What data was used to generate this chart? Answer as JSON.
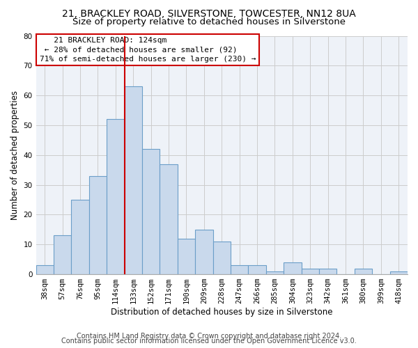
{
  "title1": "21, BRACKLEY ROAD, SILVERSTONE, TOWCESTER, NN12 8UA",
  "title2": "Size of property relative to detached houses in Silverstone",
  "xlabel": "Distribution of detached houses by size in Silverstone",
  "ylabel": "Number of detached properties",
  "categories": [
    "38sqm",
    "57sqm",
    "76sqm",
    "95sqm",
    "114sqm",
    "133sqm",
    "152sqm",
    "171sqm",
    "190sqm",
    "209sqm",
    "228sqm",
    "247sqm",
    "266sqm",
    "285sqm",
    "304sqm",
    "323sqm",
    "342sqm",
    "361sqm",
    "380sqm",
    "399sqm",
    "418sqm"
  ],
  "values": [
    3,
    13,
    25,
    33,
    52,
    63,
    42,
    37,
    12,
    15,
    11,
    3,
    3,
    1,
    4,
    2,
    2,
    0,
    2,
    0,
    1
  ],
  "bar_color": "#c9d9ec",
  "bar_edge_color": "#6b9ec8",
  "ref_line_x": 4.5,
  "ref_line_label": "21 BRACKLEY ROAD: 124sqm",
  "pct_smaller": "28% of detached houses are smaller (92)",
  "pct_larger": "71% of semi-detached houses are larger (230)",
  "box_color": "#ffffff",
  "box_edge_color": "#cc0000",
  "ref_line_color": "#cc0000",
  "ylim": [
    0,
    80
  ],
  "yticks": [
    0,
    10,
    20,
    30,
    40,
    50,
    60,
    70,
    80
  ],
  "grid_color": "#cccccc",
  "background_color": "#eef2f8",
  "footer1": "Contains HM Land Registry data © Crown copyright and database right 2024.",
  "footer2": "Contains public sector information licensed under the Open Government Licence v3.0.",
  "title_fontsize": 10,
  "subtitle_fontsize": 9.5,
  "axis_label_fontsize": 8.5,
  "tick_fontsize": 7.5,
  "annotation_fontsize": 8,
  "footer_fontsize": 7
}
